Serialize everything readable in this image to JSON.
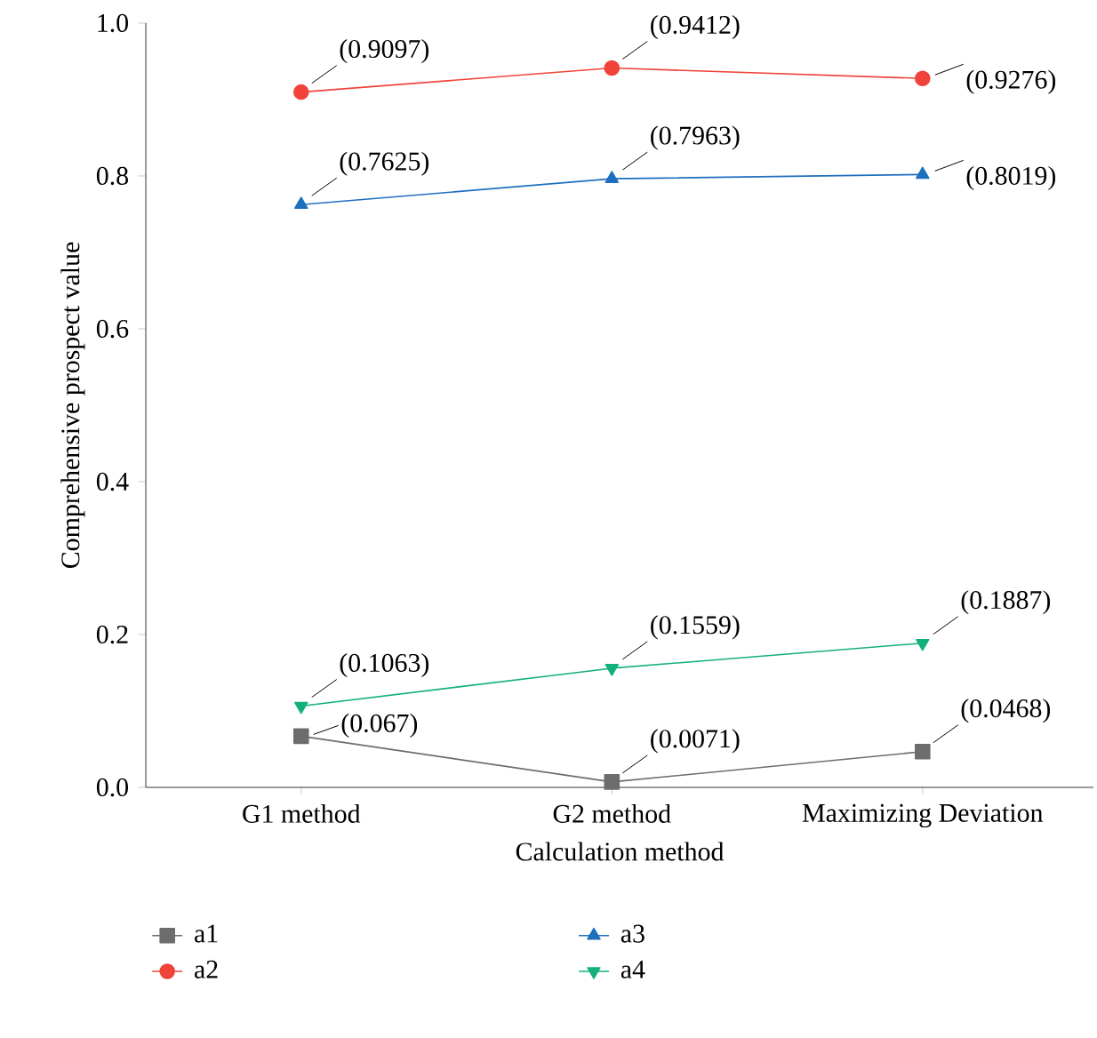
{
  "chart_data": {
    "type": "line",
    "xlabel": "Calculation method",
    "ylabel": "Comprehensive prospect value",
    "categories": [
      "G1 method",
      "G2 method",
      "Maximizing Deviation"
    ],
    "ylim": [
      0,
      1
    ],
    "yticks": [
      {
        "value": 0,
        "label": "0.0"
      },
      {
        "value": 0.2,
        "label": "0.2"
      },
      {
        "value": 0.4,
        "label": "0.4"
      },
      {
        "value": 0.6,
        "label": "0.6"
      },
      {
        "value": 0.8,
        "label": "0.8"
      },
      {
        "value": 1,
        "label": "1.0"
      }
    ],
    "grid": false,
    "legend": "bottom",
    "line_style": "solid",
    "series": [
      {
        "name": "a1",
        "color": "#6d6d6d",
        "marker": "square",
        "values": [
          0.067,
          0.0071,
          0.0468
        ],
        "value_labels": [
          "(0.067)",
          "(0.0071)",
          "(0.0468)"
        ]
      },
      {
        "name": "a2",
        "color": "#f0433a",
        "marker": "circle",
        "values": [
          0.9097,
          0.9412,
          0.9276
        ],
        "value_labels": [
          "(0.9097)",
          "(0.9412)",
          "(0.9276)"
        ]
      },
      {
        "name": "a3",
        "color": "#1f6fbf",
        "marker": "triangle",
        "values": [
          0.7625,
          0.7963,
          0.8019
        ],
        "value_labels": [
          "(0.7625)",
          "(0.7963)",
          "(0.8019)"
        ]
      },
      {
        "name": "a4",
        "color": "#14b07a",
        "marker": "triangle-down",
        "values": [
          0.1063,
          0.1559,
          0.1887
        ],
        "value_labels": [
          "(0.1063)",
          "(0.1559)",
          "(0.1887)"
        ]
      }
    ]
  }
}
